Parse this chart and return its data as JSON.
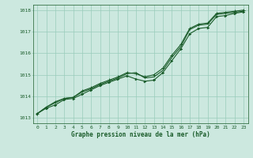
{
  "title": "Graphe pression niveau de la mer (hPa)",
  "bg_color": "#cce8df",
  "grid_color": "#99ccbb",
  "line_color": "#1a5c2a",
  "text_color": "#1a5c2a",
  "xlim": [
    -0.5,
    23.5
  ],
  "ylim": [
    1012.75,
    1018.25
  ],
  "yticks": [
    1013,
    1014,
    1015,
    1016,
    1017,
    1018
  ],
  "xticks": [
    0,
    1,
    2,
    3,
    4,
    5,
    6,
    7,
    8,
    9,
    10,
    11,
    12,
    13,
    14,
    15,
    16,
    17,
    18,
    19,
    20,
    21,
    22,
    23
  ],
  "series1": [
    1013.2,
    1013.5,
    1013.7,
    1013.9,
    1013.95,
    1014.2,
    1014.35,
    1014.55,
    1014.7,
    1014.85,
    1015.05,
    1015.1,
    1014.85,
    1014.9,
    1015.2,
    1015.8,
    1016.3,
    1017.1,
    1017.3,
    1017.35,
    1017.8,
    1017.85,
    1017.9,
    1017.95
  ],
  "series2": [
    1013.2,
    1013.5,
    1013.75,
    1013.9,
    1013.95,
    1014.25,
    1014.4,
    1014.6,
    1014.75,
    1014.9,
    1015.1,
    1015.05,
    1014.9,
    1015.0,
    1015.3,
    1015.9,
    1016.4,
    1017.15,
    1017.35,
    1017.4,
    1017.85,
    1017.9,
    1017.95,
    1018.0
  ],
  "series3": [
    1013.2,
    1013.45,
    1013.6,
    1013.85,
    1013.9,
    1014.1,
    1014.3,
    1014.5,
    1014.65,
    1014.8,
    1014.95,
    1014.8,
    1014.7,
    1014.75,
    1015.1,
    1015.65,
    1016.2,
    1016.9,
    1017.15,
    1017.2,
    1017.7,
    1017.75,
    1017.85,
    1017.92
  ],
  "title_fontsize": 5.5,
  "tick_fontsize": 4.5,
  "linewidth": 0.8,
  "markersize": 2.5
}
